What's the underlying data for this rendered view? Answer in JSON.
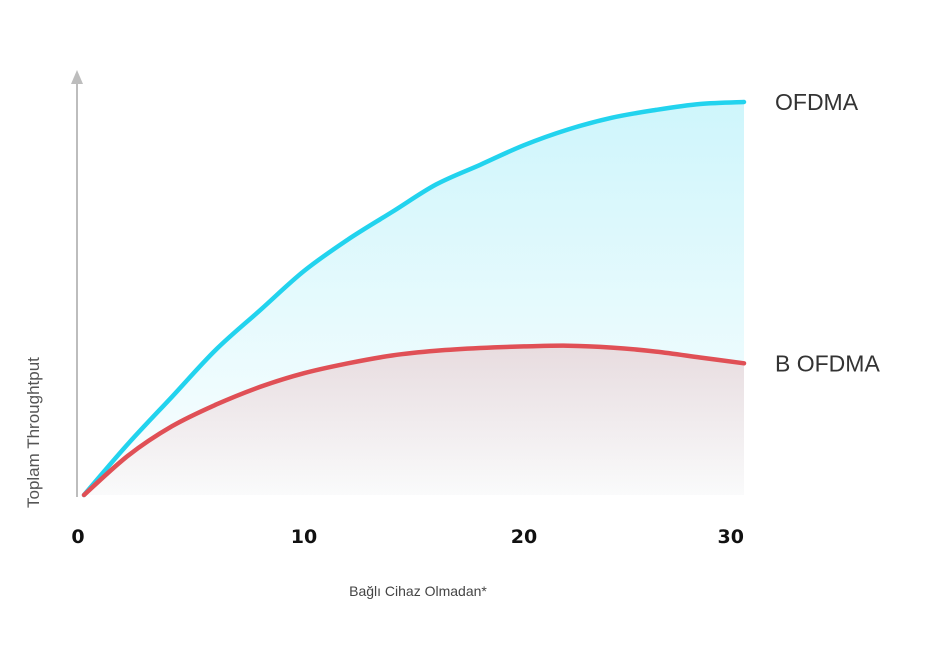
{
  "chart_data": {
    "type": "area",
    "title": "",
    "xlabel": "Bağlı Cihaz Olmadan*",
    "ylabel": "Toplam Throughtput",
    "xlim": [
      0,
      30
    ],
    "ylim": [
      0,
      100
    ],
    "x_ticks": [
      "0",
      "10",
      "20",
      "30"
    ],
    "grid": false,
    "legend": "inline-right",
    "series": [
      {
        "name": "OFDMA",
        "color": "#22d3ee",
        "x": [
          0,
          2,
          4,
          6,
          8,
          10,
          12,
          14,
          16,
          18,
          20,
          22,
          24,
          26,
          28,
          30
        ],
        "values": [
          0,
          13,
          25,
          37,
          47,
          57,
          65,
          72,
          79,
          84,
          89,
          93,
          96,
          98,
          99.5,
          100
        ]
      },
      {
        "name": "B OFDMA",
        "color": "#e05056",
        "x": [
          0,
          2,
          4,
          6,
          8,
          10,
          12,
          14,
          16,
          18,
          20,
          22,
          24,
          26,
          28,
          30
        ],
        "values": [
          0,
          10,
          17.5,
          23,
          27.5,
          31,
          33.5,
          35.5,
          36.7,
          37.4,
          37.8,
          38,
          37.5,
          36.5,
          35,
          33.5
        ]
      }
    ]
  }
}
